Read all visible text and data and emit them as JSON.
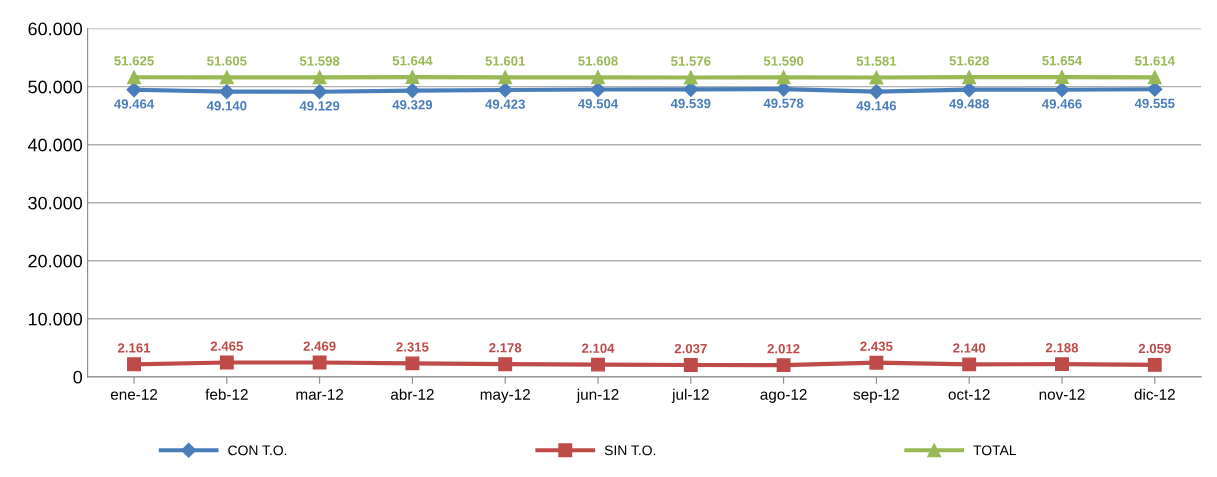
{
  "chart_data": {
    "type": "line",
    "categories": [
      "ene-12",
      "feb-12",
      "mar-12",
      "abr-12",
      "may-12",
      "jun-12",
      "jul-12",
      "ago-12",
      "sep-12",
      "oct-12",
      "nov-12",
      "dic-12"
    ],
    "series": [
      {
        "name": "CON T.O.",
        "color": "#4a7ebb",
        "marker": "diamond",
        "values": [
          49464,
          49140,
          49129,
          49329,
          49423,
          49504,
          49539,
          49578,
          49146,
          49488,
          49466,
          49555
        ],
        "value_labels": [
          "49.464",
          "49.140",
          "49.129",
          "49.329",
          "49.423",
          "49.504",
          "49.539",
          "49.578",
          "49.146",
          "49.488",
          "49.466",
          "49.555"
        ]
      },
      {
        "name": "SIN T.O.",
        "color": "#be4b48",
        "marker": "square",
        "values": [
          2161,
          2465,
          2469,
          2315,
          2178,
          2104,
          2037,
          2012,
          2435,
          2140,
          2188,
          2059
        ],
        "value_labels": [
          "2.161",
          "2.465",
          "2.469",
          "2.315",
          "2.178",
          "2.104",
          "2.037",
          "2.012",
          "2.435",
          "2.140",
          "2.188",
          "2.059"
        ]
      },
      {
        "name": "TOTAL",
        "color": "#98b954",
        "marker": "triangle",
        "values": [
          51625,
          51605,
          51598,
          51644,
          51601,
          51608,
          51576,
          51590,
          51581,
          51628,
          51654,
          51614
        ],
        "value_labels": [
          "51.625",
          "51.605",
          "51.598",
          "51.644",
          "51.601",
          "51.608",
          "51.576",
          "51.590",
          "51.581",
          "51.628",
          "51.654",
          "51.614"
        ]
      }
    ],
    "ylim": [
      0,
      60000
    ],
    "yticks": [
      {
        "value": 0,
        "label": "0"
      },
      {
        "value": 10000,
        "label": "10.000"
      },
      {
        "value": 20000,
        "label": "20.000"
      },
      {
        "value": 30000,
        "label": "30.000"
      },
      {
        "value": 40000,
        "label": "40.000"
      },
      {
        "value": 50000,
        "label": "50.000"
      },
      {
        "value": 60000,
        "label": "60.000"
      }
    ],
    "grid": "y",
    "legend": "bottom",
    "line_style": "solid"
  }
}
